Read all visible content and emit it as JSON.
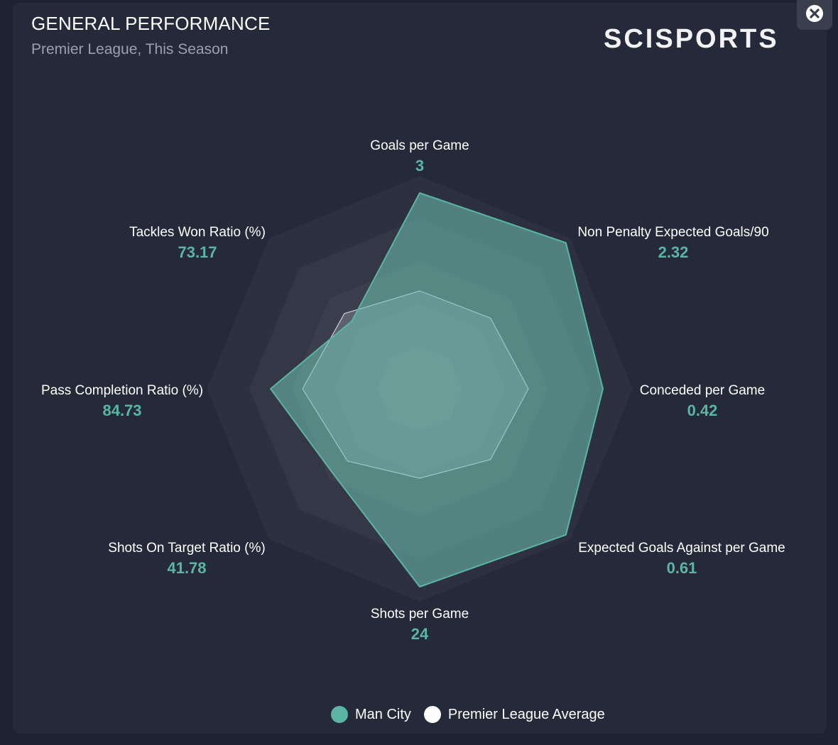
{
  "header": {
    "title": "GENERAL PERFORMANCE",
    "subtitle": "Premier League, This Season",
    "brand": "SCISPORTS"
  },
  "controls": {
    "close_icon": "close-icon"
  },
  "colors": {
    "team": "#5bb5a2",
    "team_fill": "#6fc4b2",
    "average_fill": "#8a8f9c",
    "background": "#252a3a"
  },
  "chart_data": {
    "type": "radar",
    "title": "GENERAL PERFORMANCE",
    "subtitle": "Premier League, This Season",
    "axes": [
      "Goals per Game",
      "Non Penalty Expected Goals/90",
      "Conceded per Game",
      "Expected Goals Against per Game",
      "Shots per Game",
      "Shots On Target Ratio (%)",
      "Pass Completion Ratio (%)",
      "Tackles Won Ratio (%)"
    ],
    "value_labels": [
      "3",
      "2.32",
      "0.42",
      "0.61",
      "24",
      "41.78",
      "84.73",
      "73.17"
    ],
    "scale_range": [
      0,
      1
    ],
    "rings": 5,
    "series": [
      {
        "name": "Man City",
        "color": "#5bb5a2",
        "normalized": [
          0.92,
          0.97,
          0.86,
          0.97,
          0.93,
          0.57,
          0.7,
          0.45
        ]
      },
      {
        "name": "Premier League Average",
        "color": "#ffffff",
        "normalized": [
          0.46,
          0.47,
          0.51,
          0.47,
          0.42,
          0.48,
          0.55,
          0.5
        ]
      }
    ],
    "legend": [
      "Man City",
      "Premier League Average"
    ]
  }
}
